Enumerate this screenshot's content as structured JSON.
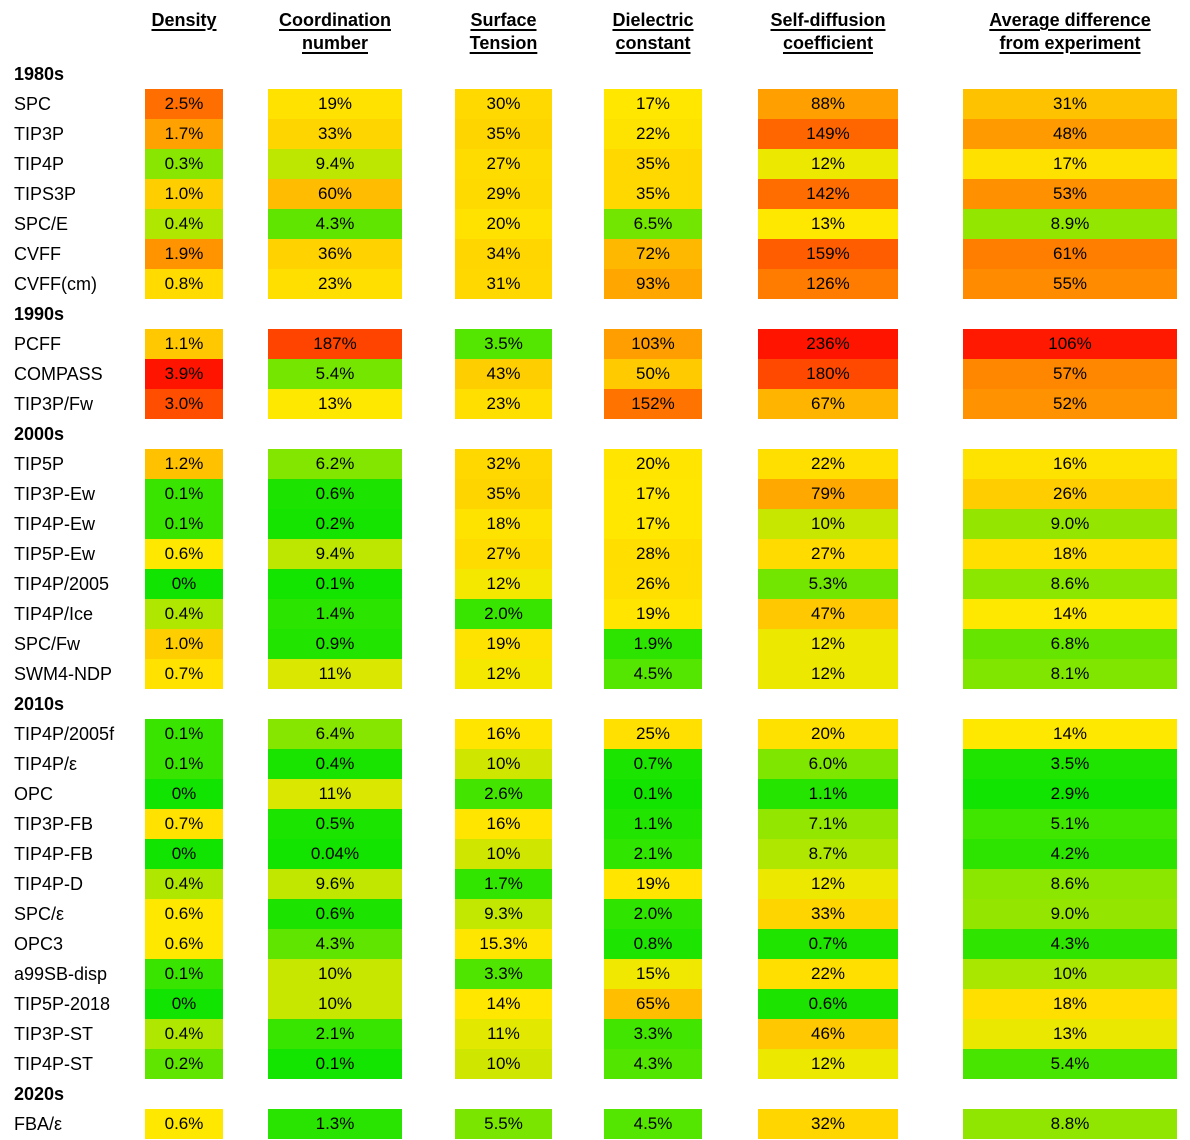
{
  "chart_data": {
    "type": "heatmap",
    "title": "",
    "value_unit": "%",
    "columns": [
      "Density",
      "Coordination number",
      "Surface Tension",
      "Dielectric constant",
      "Self-diffusion coefficient",
      "Average difference from experiment"
    ],
    "column_header_lines": [
      [
        "Density"
      ],
      [
        "Coordination",
        "number"
      ],
      [
        "Surface",
        "Tension"
      ],
      [
        "Dielectric",
        "constant"
      ],
      [
        "Self-diffusion",
        "coefficient"
      ],
      [
        "Average difference",
        "from experiment"
      ]
    ],
    "color_scale": {
      "low_color": "#11E400",
      "mid_color": "#FFE800",
      "high_color": "#FF1400",
      "note": "each column interpolated green-yellow-red between its own min/mid/max anchors",
      "column_anchors": [
        {
          "min": 0,
          "mid": 0.6,
          "max": 3.9
        },
        {
          "min": 0,
          "mid": 13,
          "max": 238
        },
        {
          "min": 0,
          "mid": 12.5,
          "max": 265
        },
        {
          "min": 0,
          "mid": 16,
          "max": 265
        },
        {
          "min": 0,
          "mid": 13,
          "max": 235
        },
        {
          "min": 2.9,
          "mid": 14,
          "max": 108
        }
      ]
    },
    "sections": [
      {
        "label": "1980s",
        "rows": [
          {
            "model": "SPC",
            "values": [
              "2.5%",
              "19%",
              "30%",
              "17%",
              "88%",
              "31%"
            ]
          },
          {
            "model": "TIP3P",
            "values": [
              "1.7%",
              "33%",
              "35%",
              "22%",
              "149%",
              "48%"
            ]
          },
          {
            "model": "TIP4P",
            "values": [
              "0.3%",
              "9.4%",
              "27%",
              "35%",
              "12%",
              "17%"
            ]
          },
          {
            "model": "TIPS3P",
            "values": [
              "1.0%",
              "60%",
              "29%",
              "35%",
              "142%",
              "53%"
            ]
          },
          {
            "model": "SPC/E",
            "values": [
              "0.4%",
              "4.3%",
              "20%",
              "6.5%",
              "13%",
              "8.9%"
            ]
          },
          {
            "model": "CVFF",
            "values": [
              "1.9%",
              "36%",
              "34%",
              "72%",
              "159%",
              "61%"
            ]
          },
          {
            "model": "CVFF(cm)",
            "values": [
              "0.8%",
              "23%",
              "31%",
              "93%",
              "126%",
              "55%"
            ]
          }
        ]
      },
      {
        "label": "1990s",
        "rows": [
          {
            "model": "PCFF",
            "values": [
              "1.1%",
              "187%",
              "3.5%",
              "103%",
              "236%",
              "106%"
            ]
          },
          {
            "model": "COMPASS",
            "values": [
              "3.9%",
              "5.4%",
              "43%",
              "50%",
              "180%",
              "57%"
            ]
          },
          {
            "model": "TIP3P/Fw",
            "values": [
              "3.0%",
              "13%",
              "23%",
              "152%",
              "67%",
              "52%"
            ]
          }
        ]
      },
      {
        "label": "2000s",
        "rows": [
          {
            "model": "TIP5P",
            "values": [
              "1.2%",
              "6.2%",
              "32%",
              "20%",
              "22%",
              "16%"
            ]
          },
          {
            "model": "TIP3P-Ew",
            "values": [
              "0.1%",
              "0.6%",
              "35%",
              "17%",
              "79%",
              "26%"
            ]
          },
          {
            "model": "TIP4P-Ew",
            "values": [
              "0.1%",
              "0.2%",
              "18%",
              "17%",
              "10%",
              "9.0%"
            ]
          },
          {
            "model": "TIP5P-Ew",
            "values": [
              "0.6%",
              "9.4%",
              "27%",
              "28%",
              "27%",
              "18%"
            ]
          },
          {
            "model": "TIP4P/2005",
            "values": [
              "0%",
              "0.1%",
              "12%",
              "26%",
              "5.3%",
              "8.6%"
            ]
          },
          {
            "model": "TIP4P/Ice",
            "values": [
              "0.4%",
              "1.4%",
              "2.0%",
              "19%",
              "47%",
              "14%"
            ]
          },
          {
            "model": "SPC/Fw",
            "values": [
              "1.0%",
              "0.9%",
              "19%",
              "1.9%",
              "12%",
              "6.8%"
            ]
          },
          {
            "model": "SWM4-NDP",
            "values": [
              "0.7%",
              "11%",
              "12%",
              "4.5%",
              "12%",
              "8.1%"
            ]
          }
        ]
      },
      {
        "label": "2010s",
        "rows": [
          {
            "model": "TIP4P/2005f",
            "values": [
              "0.1%",
              "6.4%",
              "16%",
              "25%",
              "20%",
              "14%"
            ]
          },
          {
            "model": "TIP4P/ε",
            "values": [
              "0.1%",
              "0.4%",
              "10%",
              "0.7%",
              "6.0%",
              "3.5%"
            ]
          },
          {
            "model": "OPC",
            "values": [
              "0%",
              "11%",
              "2.6%",
              "0.1%",
              "1.1%",
              "2.9%"
            ]
          },
          {
            "model": "TIP3P-FB",
            "values": [
              "0.7%",
              "0.5%",
              "16%",
              "1.1%",
              "7.1%",
              "5.1%"
            ]
          },
          {
            "model": "TIP4P-FB",
            "values": [
              "0%",
              "0.04%",
              "10%",
              "2.1%",
              "8.7%",
              "4.2%"
            ]
          },
          {
            "model": "TIP4P-D",
            "values": [
              "0.4%",
              "9.6%",
              "1.7%",
              "19%",
              "12%",
              "8.6%"
            ]
          },
          {
            "model": "SPC/ε",
            "values": [
              "0.6%",
              "0.6%",
              "9.3%",
              "2.0%",
              "33%",
              "9.0%"
            ]
          },
          {
            "model": "OPC3",
            "values": [
              "0.6%",
              "4.3%",
              "15.3%",
              "0.8%",
              "0.7%",
              "4.3%"
            ]
          },
          {
            "model": "a99SB-disp",
            "values": [
              "0.1%",
              "10%",
              "3.3%",
              "15%",
              "22%",
              "10%"
            ]
          },
          {
            "model": "TIP5P-2018",
            "values": [
              "0%",
              "10%",
              "14%",
              "65%",
              "0.6%",
              "18%"
            ]
          },
          {
            "model": "TIP3P-ST",
            "values": [
              "0.4%",
              "2.1%",
              "11%",
              "3.3%",
              "46%",
              "13%"
            ]
          },
          {
            "model": "TIP4P-ST",
            "values": [
              "0.2%",
              "0.1%",
              "10%",
              "4.3%",
              "12%",
              "5.4%"
            ]
          }
        ]
      },
      {
        "label": "2020s",
        "rows": [
          {
            "model": "FBA/ε",
            "values": [
              "0.6%",
              "1.3%",
              "5.5%",
              "4.5%",
              "32%",
              "8.8%"
            ]
          }
        ]
      }
    ]
  }
}
